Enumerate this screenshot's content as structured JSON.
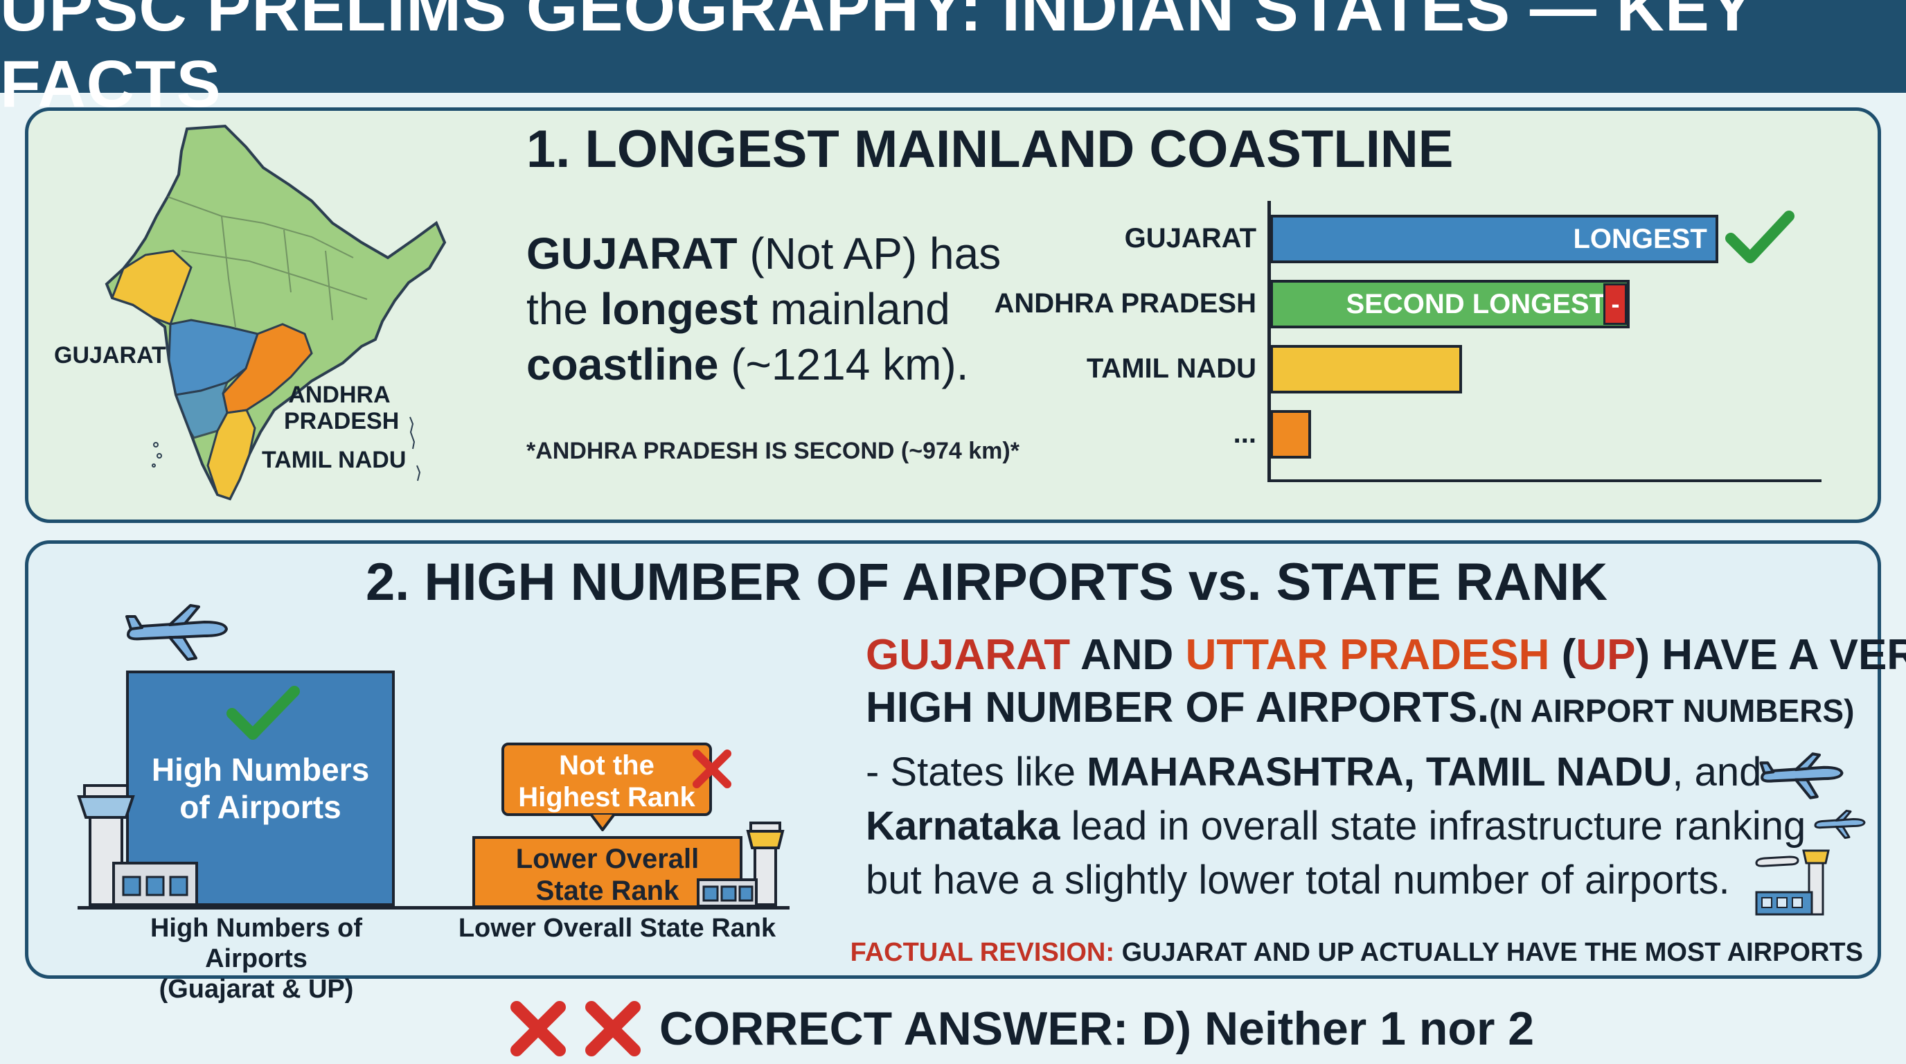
{
  "title": "UPSC PRELIMS GEOGRAPHY: INDIAN STATES — KEY FACTS",
  "section1": {
    "heading": "1. LONGEST MAINLAND COASTLINE",
    "statement": {
      "state": "GUJARAT",
      "not_ap": " (Not AP) has",
      "line2_pre": "the ",
      "line2_bold": "longest",
      "line2_post": " mainland",
      "line3_bold": "coastline",
      "line3_post": " (~1214 km)."
    },
    "footnote": "*ANDHRA PRADESH IS SECOND (~974 km)*",
    "map_labels": {
      "gujarat": "GUJARAT",
      "andhra_line1": "ANDHRA",
      "andhra_line2": "PRADESH",
      "tamil_nadu": "TAMIL NADU"
    },
    "chart_labels": {
      "longest": "LONGEST",
      "second": "SECOND LONGEST",
      "minus": "-"
    }
  },
  "chart_data": {
    "type": "bar",
    "orientation": "horizontal",
    "categories": [
      "GUJARAT",
      "ANDHRA PRADESH",
      "TAMIL NADU",
      "..."
    ],
    "values": [
      1214,
      974,
      520,
      110
    ],
    "colors": [
      "#3f86bf",
      "#5cb65c",
      "#f2c33a",
      "#ef8a22"
    ],
    "xlim": [
      0,
      1500
    ],
    "grid": false,
    "legend": "none"
  },
  "section2": {
    "heading": "2. HIGH NUMBER OF AIRPORTS vs. STATE RANK",
    "tall_box_line1": "High Numbers",
    "tall_box_line2": "of Airports",
    "flag_line1": "Not the",
    "flag_line2": "Highest Rank",
    "short_box_line1": "Lower Overall",
    "short_box_line2": "State Rank",
    "caption_left_line1": "High Numbers of Airports",
    "caption_left_line2": "(Guajarat & UP)",
    "caption_right": "Lower Overall State Rank",
    "claim": {
      "gujarat": "GUJARAT",
      "and": " AND ",
      "up": "UTTAR PRADESH",
      "open_paren": " (",
      "up_abbr": "UP",
      "close": ") HAVE A VERY",
      "line2": "HIGH NUMBER OF AIRPORTS.",
      "line2_small": "(N AIRPORT NUMBERS)"
    },
    "para": {
      "l1_pre": "- States like ",
      "l1_bold": "MAHARASHTRA, TAMIL NADU",
      "l1_post": ", and",
      "l2_bold": "Karnataka",
      "l2_post": " lead in overall state infrastructure ranking",
      "l3": "but have a slightly lower total number of airports."
    },
    "revision_label": "FACTUAL REVISION:",
    "revision_text": " GUJARAT AND UP ACTUALLY HAVE THE MOST AIRPORTS"
  },
  "answer": "CORRECT ANSWER: D) Neither 1 nor 2",
  "colors": {
    "navy": "#1f4f6e",
    "blue": "#3f86bf",
    "green": "#5cb65c",
    "yellow": "#f2c33a",
    "orange": "#ef8a22",
    "red": "#c23325",
    "check": "#2e9a3e"
  }
}
